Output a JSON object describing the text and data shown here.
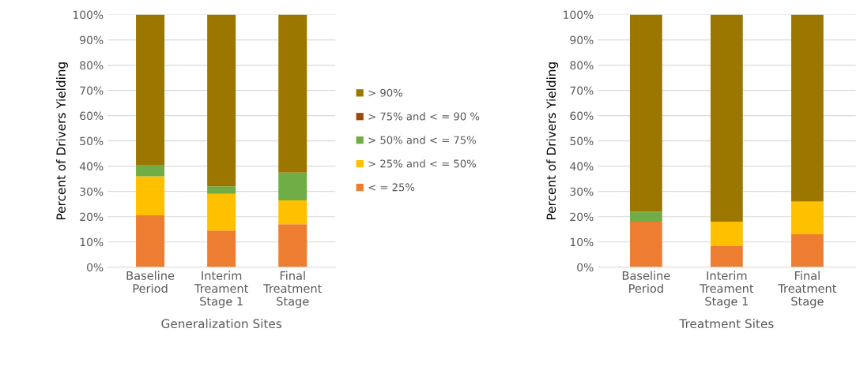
{
  "chart_data": [
    {
      "type": "bar",
      "stacked": true,
      "xlabel": "Generalization Sites",
      "ylabel": "Percent of Drivers Yielding",
      "categories": [
        "Baseline\nPeriod",
        "Interim\nTreament\nStage 1",
        "Final\nTreatment\nStage"
      ],
      "ylim": [
        0,
        100
      ],
      "yticks": [
        {
          "value": 0,
          "label": "0%"
        },
        {
          "value": 10,
          "label": "10%"
        },
        {
          "value": 20,
          "label": "20%"
        },
        {
          "value": 30,
          "label": "30%"
        },
        {
          "value": 40,
          "label": "40%"
        },
        {
          "value": 50,
          "label": "50%"
        },
        {
          "value": 60,
          "label": "60%"
        },
        {
          "value": 70,
          "label": "70%"
        },
        {
          "value": 80,
          "label": "80%"
        },
        {
          "value": 90,
          "label": "90%"
        },
        {
          "value": 100,
          "label": "100%"
        }
      ],
      "grid": "y",
      "legend": "right",
      "series": [
        {
          "name": "< = 25%",
          "color": "#ed7d31",
          "values": [
            20.5,
            14.5,
            17
          ]
        },
        {
          "name": "> 25% and < = 50%",
          "color": "#ffc000",
          "values": [
            15.5,
            14.5,
            9.5
          ]
        },
        {
          "name": "> 50% and < = 75%",
          "color": "#70ad47",
          "values": [
            4.5,
            3,
            11
          ]
        },
        {
          "name": "> 75% and < = 90 %",
          "color": "#9e480e",
          "values": [
            0,
            0,
            0
          ]
        },
        {
          "name": "> 90%",
          "color": "#9c7700",
          "values": [
            59.5,
            68,
            62.5
          ]
        }
      ]
    },
    {
      "type": "bar",
      "stacked": true,
      "xlabel": "Treatment Sites",
      "ylabel": "Percent of Drivers Yielding",
      "categories": [
        "Baseline\nPeriod",
        "Interim\nTreament\nStage 1",
        "Final\nTreatment\nStage"
      ],
      "ylim": [
        0,
        100
      ],
      "yticks": [
        {
          "value": 0,
          "label": "0%"
        },
        {
          "value": 10,
          "label": "10%"
        },
        {
          "value": 20,
          "label": "20%"
        },
        {
          "value": 30,
          "label": "30%"
        },
        {
          "value": 40,
          "label": "40%"
        },
        {
          "value": 50,
          "label": "50%"
        },
        {
          "value": 60,
          "label": "60%"
        },
        {
          "value": 70,
          "label": "70%"
        },
        {
          "value": 80,
          "label": "80%"
        },
        {
          "value": 90,
          "label": "90%"
        },
        {
          "value": 100,
          "label": "100%"
        }
      ],
      "grid": "y",
      "series": [
        {
          "color": "#ed7d31",
          "values": [
            18,
            8.5,
            13
          ]
        },
        {
          "color": "#ffc000",
          "values": [
            0,
            9.5,
            13
          ]
        },
        {
          "color": "#70ad47",
          "values": [
            4,
            0,
            0
          ]
        },
        {
          "color": "#9e480e",
          "values": [
            0,
            0,
            0
          ]
        },
        {
          "color": "#9c7700",
          "values": [
            78,
            82,
            74
          ]
        }
      ]
    }
  ]
}
